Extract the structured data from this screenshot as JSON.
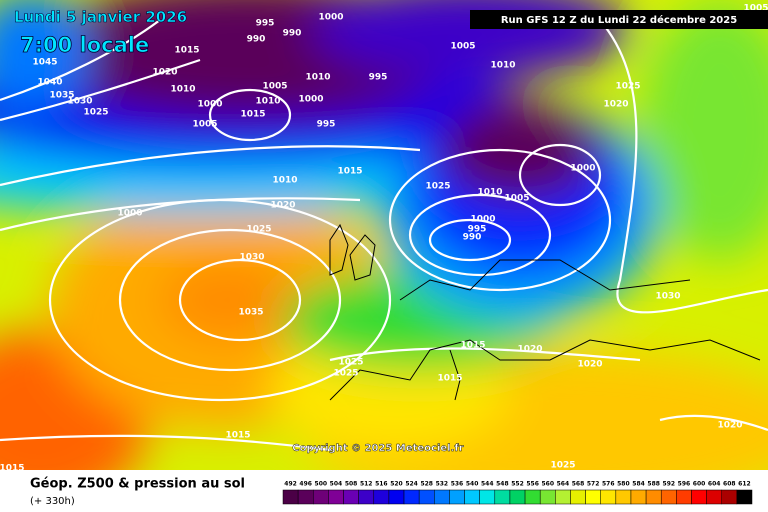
{
  "header": {
    "date": "Lundi 5 janvier 2026",
    "time": "7:00 locale",
    "run": "Run GFS 12 Z du Lundi 22 décembre 2025"
  },
  "copyright": "Copyright © 2025 Meteociel.fr",
  "footer": {
    "title": "Géop. Z500 & pression au sol",
    "lead": "(+ 330h)"
  },
  "legend": {
    "ticks": [
      492,
      496,
      500,
      504,
      508,
      512,
      516,
      520,
      524,
      528,
      532,
      536,
      540,
      544,
      548,
      552,
      556,
      560,
      564,
      568,
      572,
      576,
      580,
      584,
      588,
      592,
      596,
      600,
      604,
      608,
      612
    ],
    "colors": [
      "#4b0046",
      "#5a005a",
      "#6e0078",
      "#7f0096",
      "#6a00b4",
      "#3c00c8",
      "#1e00dc",
      "#0000f0",
      "#0028ff",
      "#0050ff",
      "#0078ff",
      "#00a0ff",
      "#00c8ff",
      "#00e6e6",
      "#00dca0",
      "#00d264",
      "#32dc32",
      "#78e632",
      "#b4f032",
      "#e6f000",
      "#ffff00",
      "#ffe600",
      "#ffc800",
      "#ffaa00",
      "#ff8c00",
      "#ff6400",
      "#ff3c00",
      "#ff0000",
      "#dc0000",
      "#aa0000",
      "#000000"
    ]
  },
  "isobar_labels": [
    1045,
    1040,
    1035,
    1030,
    1025,
    1000,
    995,
    990,
    990,
    1015,
    1020,
    1010,
    1000,
    1005,
    1005,
    1010,
    1015,
    1010,
    1000,
    995,
    995,
    1000,
    1005,
    1010,
    1025,
    1020,
    1015,
    1010,
    1020,
    1025,
    1030,
    1035,
    1025,
    1010,
    1005,
    1000,
    1000,
    995,
    990,
    1015,
    1020,
    1020,
    1030,
    1025,
    1025,
    1015,
    1015,
    1020,
    1025,
    1015,
    1005
  ]
}
